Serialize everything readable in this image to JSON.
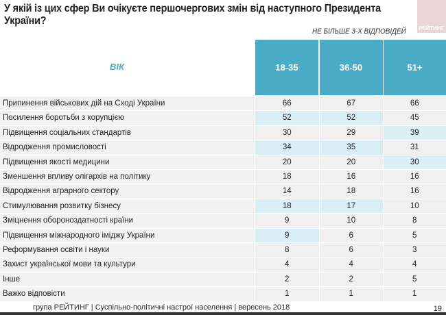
{
  "title": "У якій із цих сфер Ви очікуєте першочергових змін від наступного Президента України?",
  "logo": "РЕЙТИНГ",
  "note": "НЕ БІЛЬШЕ 3-Х ВІДПОВІДЕЙ",
  "header": {
    "group_label": "ВІК",
    "columns": [
      "18-35",
      "36-50",
      "51+"
    ]
  },
  "colors": {
    "header": "#4aabc6",
    "highlight": "#daeef5",
    "cell": "#f0f0f0"
  },
  "rows": [
    {
      "label": "Припинення військових дій на Сході України",
      "values": [
        "66",
        "67",
        "66"
      ],
      "highlight": [
        false,
        false,
        false
      ]
    },
    {
      "label": "Посилення боротьби з корупцією",
      "values": [
        "52",
        "52",
        "45"
      ],
      "highlight": [
        true,
        true,
        false
      ]
    },
    {
      "label": "Підвищення соціальних стандартів",
      "values": [
        "30",
        "29",
        "39"
      ],
      "highlight": [
        false,
        false,
        true
      ]
    },
    {
      "label": "Відродження промисловості",
      "values": [
        "34",
        "35",
        "31"
      ],
      "highlight": [
        true,
        true,
        false
      ]
    },
    {
      "label": "Підвищення якості медицини",
      "values": [
        "20",
        "20",
        "30"
      ],
      "highlight": [
        false,
        false,
        true
      ]
    },
    {
      "label": "Зменшення впливу олігархів на політику",
      "values": [
        "18",
        "16",
        "16"
      ],
      "highlight": [
        false,
        false,
        false
      ]
    },
    {
      "label": "Відродження аграрного сектору",
      "values": [
        "14",
        "18",
        "16"
      ],
      "highlight": [
        false,
        false,
        false
      ]
    },
    {
      "label": "Стимулювання розвитку бізнесу",
      "values": [
        "18",
        "17",
        "10"
      ],
      "highlight": [
        true,
        true,
        false
      ]
    },
    {
      "label": "Зміцнення обороноздатності країни",
      "values": [
        "9",
        "10",
        "8"
      ],
      "highlight": [
        false,
        false,
        false
      ]
    },
    {
      "label": "Підвищення міжнародного іміджу України",
      "values": [
        "9",
        "6",
        "5"
      ],
      "highlight": [
        true,
        false,
        false
      ]
    },
    {
      "label": "Реформування освіти і науки",
      "values": [
        "8",
        "6",
        "3"
      ],
      "highlight": [
        false,
        false,
        false
      ]
    },
    {
      "label": "Захист української мови та культури",
      "values": [
        "4",
        "4",
        "4"
      ],
      "highlight": [
        false,
        false,
        false
      ]
    },
    {
      "label": "Інше",
      "values": [
        "2",
        "2",
        "5"
      ],
      "highlight": [
        false,
        false,
        false
      ]
    },
    {
      "label": "Важко відповісти",
      "values": [
        "1",
        "1",
        "1"
      ],
      "highlight": [
        false,
        false,
        false
      ]
    }
  ],
  "footer": "група РЕЙТИНГ |  Суспільно-політичні настрої населення | вересень  2018",
  "page_number": "19"
}
